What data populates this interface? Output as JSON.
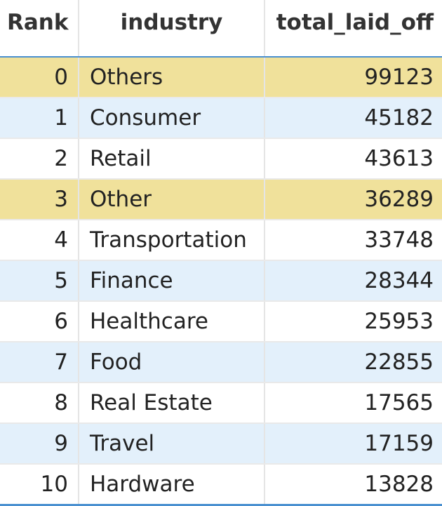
{
  "table": {
    "columns": [
      {
        "key": "rank",
        "label": "Rank"
      },
      {
        "key": "industry",
        "label": "industry"
      },
      {
        "key": "total_laid_off",
        "label": "total_laid_off"
      }
    ],
    "rows": [
      {
        "rank": "0",
        "industry": "Others",
        "total_laid_off": "99123",
        "highlighted": true
      },
      {
        "rank": "1",
        "industry": "Consumer",
        "total_laid_off": "45182",
        "highlighted": false
      },
      {
        "rank": "2",
        "industry": "Retail",
        "total_laid_off": "43613",
        "highlighted": false
      },
      {
        "rank": "3",
        "industry": "Other",
        "total_laid_off": "36289",
        "highlighted": true
      },
      {
        "rank": "4",
        "industry": "Transportation",
        "total_laid_off": "33748",
        "highlighted": false
      },
      {
        "rank": "5",
        "industry": "Finance",
        "total_laid_off": "28344",
        "highlighted": false
      },
      {
        "rank": "6",
        "industry": "Healthcare",
        "total_laid_off": "25953",
        "highlighted": false
      },
      {
        "rank": "7",
        "industry": "Food",
        "total_laid_off": "22855",
        "highlighted": false
      },
      {
        "rank": "8",
        "industry": "Real Estate",
        "total_laid_off": "17565",
        "highlighted": false
      },
      {
        "rank": "9",
        "industry": "Travel",
        "total_laid_off": "17159",
        "highlighted": false
      },
      {
        "rank": "10",
        "industry": "Hardware",
        "total_laid_off": "13828",
        "highlighted": false
      }
    ]
  },
  "colors": {
    "highlight_row": "#f0e19b",
    "striped_row": "#e3f0fb",
    "plain_row": "#ffffff",
    "header_rule": "#4a90d0"
  }
}
